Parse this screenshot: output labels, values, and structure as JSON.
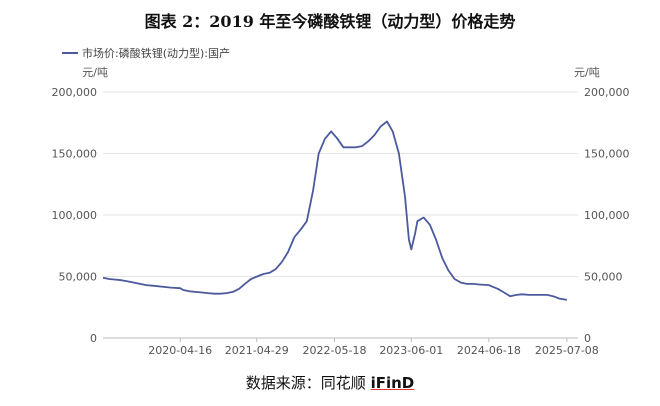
{
  "title": "图表 2：2019 年至今磷酸铁锂（动力型）价格走势",
  "source": {
    "prefix": "数据来源：",
    "name": "同花顺 ",
    "brand": "iFinD"
  },
  "colors": {
    "line": "#4a5a9c",
    "grid": "#e6e6e6",
    "axis_text": "#555555"
  },
  "chart_data": {
    "type": "line",
    "title": "图表 2：2019 年至今磷酸铁锂（动力型）价格走势",
    "legend_position": "top-left",
    "grid": true,
    "y_unit_left": "元/吨",
    "y_unit_right": "元/吨",
    "ylim": [
      0,
      200000
    ],
    "yticks": [
      "0",
      "50,000",
      "100,000",
      "150,000",
      "200,000"
    ],
    "xlim": [
      "2019-04-01",
      "2025-09-01"
    ],
    "xticks": [
      "2020-04-16",
      "2021-04-29",
      "2022-05-18",
      "2023-06-01",
      "2024-06-18",
      "2025-07-08"
    ],
    "series": [
      {
        "name": "市场价:磷酸铁锂(动力型):国产",
        "points": [
          [
            "2019-04-01",
            49000
          ],
          [
            "2019-05-01",
            48000
          ],
          [
            "2019-06-01",
            47500
          ],
          [
            "2019-07-01",
            47000
          ],
          [
            "2019-08-01",
            46000
          ],
          [
            "2019-09-01",
            45000
          ],
          [
            "2019-10-01",
            44000
          ],
          [
            "2019-11-01",
            43000
          ],
          [
            "2019-12-01",
            42500
          ],
          [
            "2020-01-01",
            42000
          ],
          [
            "2020-02-01",
            41500
          ],
          [
            "2020-03-01",
            41000
          ],
          [
            "2020-04-16",
            40500
          ],
          [
            "2020-05-01",
            39000
          ],
          [
            "2020-06-01",
            38000
          ],
          [
            "2020-07-01",
            37500
          ],
          [
            "2020-08-01",
            37000
          ],
          [
            "2020-09-01",
            36500
          ],
          [
            "2020-10-01",
            36000
          ],
          [
            "2020-11-01",
            36000
          ],
          [
            "2020-12-01",
            36500
          ],
          [
            "2021-01-01",
            37500
          ],
          [
            "2021-02-01",
            40000
          ],
          [
            "2021-03-01",
            44000
          ],
          [
            "2021-04-01",
            48000
          ],
          [
            "2021-05-01",
            50000
          ],
          [
            "2021-06-01",
            52000
          ],
          [
            "2021-07-01",
            53000
          ],
          [
            "2021-08-01",
            56000
          ],
          [
            "2021-09-01",
            62000
          ],
          [
            "2021-10-01",
            70000
          ],
          [
            "2021-11-01",
            82000
          ],
          [
            "2021-12-01",
            88000
          ],
          [
            "2022-01-01",
            95000
          ],
          [
            "2022-02-01",
            120000
          ],
          [
            "2022-03-01",
            150000
          ],
          [
            "2022-04-01",
            162000
          ],
          [
            "2022-05-01",
            168000
          ],
          [
            "2022-06-01",
            162000
          ],
          [
            "2022-07-01",
            155000
          ],
          [
            "2022-08-01",
            155000
          ],
          [
            "2022-09-01",
            155000
          ],
          [
            "2022-10-01",
            156000
          ],
          [
            "2022-11-01",
            160000
          ],
          [
            "2022-12-01",
            165000
          ],
          [
            "2023-01-01",
            172000
          ],
          [
            "2023-02-01",
            176000
          ],
          [
            "2023-03-01",
            168000
          ],
          [
            "2023-04-01",
            150000
          ],
          [
            "2023-05-01",
            115000
          ],
          [
            "2023-05-20",
            80000
          ],
          [
            "2023-06-01",
            72000
          ],
          [
            "2023-06-20",
            85000
          ],
          [
            "2023-07-01",
            95000
          ],
          [
            "2023-08-01",
            98000
          ],
          [
            "2023-09-01",
            92000
          ],
          [
            "2023-10-01",
            80000
          ],
          [
            "2023-11-01",
            65000
          ],
          [
            "2023-12-01",
            55000
          ],
          [
            "2024-01-01",
            48000
          ],
          [
            "2024-02-01",
            45000
          ],
          [
            "2024-03-01",
            44000
          ],
          [
            "2024-04-01",
            44000
          ],
          [
            "2024-05-01",
            43500
          ],
          [
            "2024-06-18",
            43000
          ],
          [
            "2024-07-01",
            42000
          ],
          [
            "2024-08-01",
            40000
          ],
          [
            "2024-09-01",
            37000
          ],
          [
            "2024-10-01",
            34000
          ],
          [
            "2024-11-01",
            35000
          ],
          [
            "2024-12-01",
            35500
          ],
          [
            "2025-01-01",
            35000
          ],
          [
            "2025-02-01",
            35000
          ],
          [
            "2025-03-01",
            35000
          ],
          [
            "2025-04-01",
            35000
          ],
          [
            "2025-05-01",
            34000
          ],
          [
            "2025-06-01",
            32000
          ],
          [
            "2025-07-08",
            31000
          ]
        ]
      }
    ]
  }
}
